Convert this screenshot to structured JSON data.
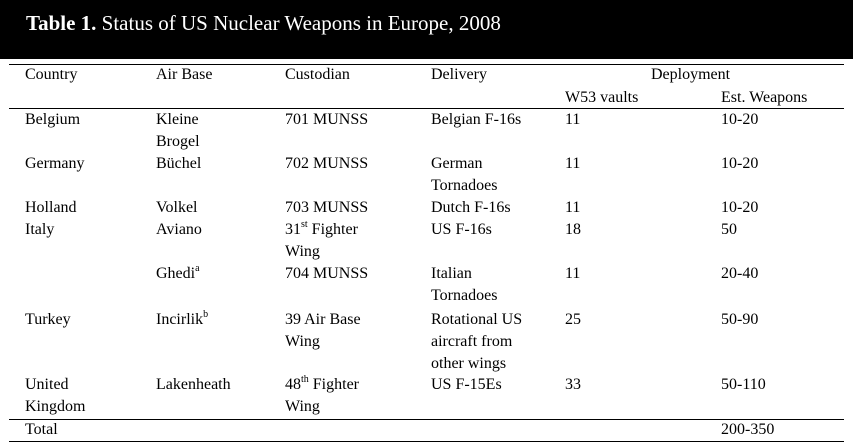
{
  "title": {
    "label": "Table 1.",
    "text": "Status of US Nuclear Weapons in Europe, 2008"
  },
  "headers": {
    "country": "Country",
    "air_base": "Air Base",
    "custodian": "Custodian",
    "delivery": "Delivery",
    "deployment": "Deployment",
    "w53_vaults": "W53 vaults",
    "est_weapons": "Est. Weapons"
  },
  "rows": [
    {
      "country": [
        "Belgium"
      ],
      "air_base": [
        "Kleine",
        "Brogel"
      ],
      "air_base_sup": "",
      "custodian": [
        "701 MUNSS"
      ],
      "custodian_sup": "",
      "delivery": [
        "Belgian F-16s"
      ],
      "vaults": "11",
      "weapons": "10-20"
    },
    {
      "country": [
        "Germany"
      ],
      "air_base": [
        "Büchel"
      ],
      "air_base_sup": "",
      "custodian": [
        "702 MUNSS"
      ],
      "custodian_sup": "",
      "delivery": [
        "German",
        "Tornadoes"
      ],
      "vaults": "11",
      "weapons": "10-20"
    },
    {
      "country": [
        "Holland"
      ],
      "air_base": [
        "Volkel"
      ],
      "air_base_sup": "",
      "custodian": [
        "703 MUNSS"
      ],
      "custodian_sup": "",
      "delivery": [
        "Dutch F-16s"
      ],
      "vaults": "11",
      "weapons": "10-20"
    },
    {
      "country": [
        "Italy"
      ],
      "air_base": [
        "Aviano"
      ],
      "air_base_sup": "",
      "custodian": [
        "31",
        "Fighter",
        "Wing"
      ],
      "custodian_sup": "st",
      "delivery": [
        "US F-16s"
      ],
      "vaults": "18",
      "weapons": "50"
    },
    {
      "country": [],
      "air_base": [
        "Ghedi"
      ],
      "air_base_sup": "a",
      "custodian": [
        "704 MUNSS"
      ],
      "custodian_sup": "",
      "delivery": [
        "Italian",
        "Tornadoes"
      ],
      "vaults": "11",
      "weapons": "20-40"
    },
    {
      "country": [
        "Turkey"
      ],
      "air_base": [
        "Incirlik"
      ],
      "air_base_sup": "b",
      "custodian": [
        "39 Air Base",
        "Wing"
      ],
      "custodian_sup": "",
      "delivery": [
        "Rotational US",
        "aircraft from",
        "other wings"
      ],
      "vaults": "25",
      "weapons": "50-90"
    },
    {
      "country": [
        "United",
        "Kingdom"
      ],
      "air_base": [
        "Lakenheath"
      ],
      "air_base_sup": "",
      "custodian": [
        "48",
        "Fighter",
        "Wing"
      ],
      "custodian_sup": "th",
      "delivery": [
        "US F-15Es"
      ],
      "vaults": "33",
      "weapons": "50-110"
    }
  ],
  "total": {
    "label": "Total",
    "weapons": "200-350"
  }
}
